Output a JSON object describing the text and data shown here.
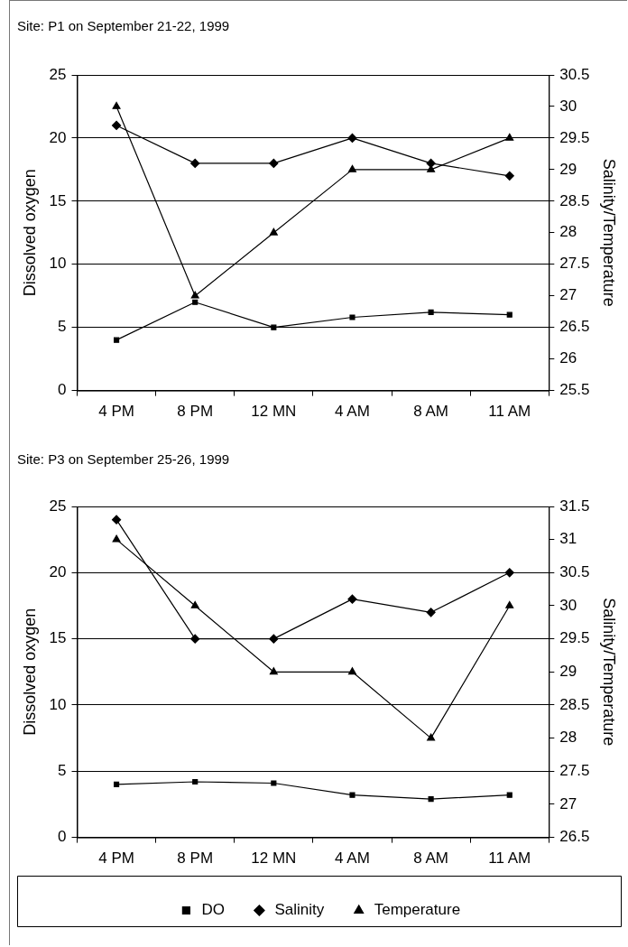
{
  "chart_data": [
    {
      "type": "line",
      "title": "Site: P1 on September 21-22, 1999",
      "categories": [
        "4 PM",
        "8 PM",
        "12 MN",
        "4 AM",
        "8 AM",
        "11 AM"
      ],
      "ylabel": "Dissolved oxygen",
      "y2label": "Salinity/Temperature",
      "ylim": [
        0,
        25
      ],
      "yticks": [
        0,
        5,
        10,
        15,
        20,
        25
      ],
      "y2lim": [
        25.5,
        30.5
      ],
      "y2ticks": [
        25.5,
        26,
        26.5,
        27,
        27.5,
        28,
        28.5,
        29,
        29.5,
        30,
        30.5
      ],
      "grid": "y",
      "legend": false,
      "line_style": "solid",
      "series": [
        {
          "color": "#000000",
          "marker": "square",
          "values": [
            4,
            7,
            5,
            5.8,
            6.2,
            6
          ]
        },
        {
          "color": "#000000",
          "marker": "diamond",
          "axis": "y2",
          "values": [
            29.7,
            29.1,
            29.1,
            29.5,
            29.1,
            28.9
          ]
        },
        {
          "color": "#000000",
          "marker": "triangle",
          "axis": "y2",
          "values": [
            30,
            27,
            28,
            29,
            29,
            29.5
          ]
        }
      ]
    },
    {
      "type": "line",
      "title": "Site: P3 on September 25-26, 1999",
      "categories": [
        "4 PM",
        "8 PM",
        "12 MN",
        "4 AM",
        "8 AM",
        "11 AM"
      ],
      "ylabel": "Dissolved oxygen",
      "y2label": "Salinity/Temperature",
      "ylim": [
        0,
        25
      ],
      "yticks": [
        0,
        5,
        10,
        15,
        20,
        25
      ],
      "y2lim": [
        26.5,
        31.5
      ],
      "y2ticks": [
        26.5,
        27,
        27.5,
        28,
        28.5,
        29,
        29.5,
        30,
        30.5,
        31,
        31.5
      ],
      "grid": "y",
      "legend": "bottom",
      "line_style": "solid",
      "series": [
        {
          "name": "DO",
          "color": "#000000",
          "marker": "square",
          "values": [
            4,
            4.2,
            4.1,
            3.2,
            2.9,
            3.2
          ]
        },
        {
          "name": "Salinity",
          "color": "#000000",
          "marker": "diamond",
          "axis": "y2",
          "values": [
            31.3,
            29.5,
            29.5,
            30.1,
            29.9,
            30.5
          ]
        },
        {
          "name": "Temperature",
          "color": "#000000",
          "marker": "triangle",
          "axis": "y2",
          "values": [
            31,
            30,
            29,
            29,
            28,
            30
          ]
        }
      ]
    }
  ]
}
